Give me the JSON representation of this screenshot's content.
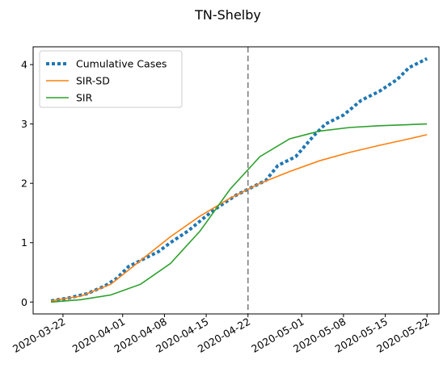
{
  "chart_data": {
    "type": "line",
    "title": "TN-Shelby",
    "xlabel": "",
    "ylabel": "",
    "x_axis": {
      "type": "date",
      "range": [
        "2020-03-17",
        "2020-05-24"
      ],
      "ticks": [
        "2020-03-22",
        "2020-04-01",
        "2020-04-08",
        "2020-04-15",
        "2020-04-22",
        "2020-05-01",
        "2020-05-08",
        "2020-05-15",
        "2020-05-22"
      ]
    },
    "y_axis": {
      "range": [
        -0.2,
        4.3
      ],
      "ticks": [
        0,
        1,
        2,
        3,
        4
      ]
    },
    "grid": false,
    "legend_position": "top-left",
    "vertical_line": {
      "x": "2020-04-22",
      "style": "dashed",
      "color": "#808080"
    },
    "series": [
      {
        "name": "Cumulative Cases",
        "color": "#1f77b4",
        "style": "dotted",
        "points": [
          [
            "2020-03-20",
            0.02
          ],
          [
            "2020-03-23",
            0.07
          ],
          [
            "2020-03-26",
            0.14
          ],
          [
            "2020-03-29",
            0.27
          ],
          [
            "2020-03-31",
            0.4
          ],
          [
            "2020-04-02",
            0.6
          ],
          [
            "2020-04-04",
            0.7
          ],
          [
            "2020-04-07",
            0.85
          ],
          [
            "2020-04-09",
            1.0
          ],
          [
            "2020-04-12",
            1.2
          ],
          [
            "2020-04-15",
            1.45
          ],
          [
            "2020-04-17",
            1.6
          ],
          [
            "2020-04-20",
            1.8
          ],
          [
            "2020-04-22",
            1.9
          ],
          [
            "2020-04-25",
            2.05
          ],
          [
            "2020-04-27",
            2.3
          ],
          [
            "2020-04-30",
            2.45
          ],
          [
            "2020-05-03",
            2.8
          ],
          [
            "2020-05-05",
            3.0
          ],
          [
            "2020-05-08",
            3.15
          ],
          [
            "2020-05-11",
            3.4
          ],
          [
            "2020-05-14",
            3.55
          ],
          [
            "2020-05-17",
            3.75
          ],
          [
            "2020-05-19",
            3.95
          ],
          [
            "2020-05-22",
            4.1
          ]
        ]
      },
      {
        "name": "SIR-SD",
        "color": "#ff7f0e",
        "style": "solid",
        "points": [
          [
            "2020-03-20",
            0.02
          ],
          [
            "2020-03-25",
            0.1
          ],
          [
            "2020-03-30",
            0.3
          ],
          [
            "2020-04-04",
            0.7
          ],
          [
            "2020-04-09",
            1.1
          ],
          [
            "2020-04-14",
            1.45
          ],
          [
            "2020-04-19",
            1.75
          ],
          [
            "2020-04-24",
            2.0
          ],
          [
            "2020-04-29",
            2.2
          ],
          [
            "2020-05-04",
            2.38
          ],
          [
            "2020-05-09",
            2.52
          ],
          [
            "2020-05-14",
            2.64
          ],
          [
            "2020-05-19",
            2.75
          ],
          [
            "2020-05-22",
            2.82
          ]
        ]
      },
      {
        "name": "SIR",
        "color": "#2ca02c",
        "style": "solid",
        "points": [
          [
            "2020-03-20",
            0.0
          ],
          [
            "2020-03-25",
            0.04
          ],
          [
            "2020-03-30",
            0.12
          ],
          [
            "2020-04-04",
            0.3
          ],
          [
            "2020-04-09",
            0.65
          ],
          [
            "2020-04-14",
            1.2
          ],
          [
            "2020-04-19",
            1.9
          ],
          [
            "2020-04-24",
            2.45
          ],
          [
            "2020-04-29",
            2.75
          ],
          [
            "2020-05-04",
            2.88
          ],
          [
            "2020-05-09",
            2.94
          ],
          [
            "2020-05-14",
            2.97
          ],
          [
            "2020-05-19",
            2.99
          ],
          [
            "2020-05-22",
            3.0
          ]
        ]
      }
    ]
  }
}
